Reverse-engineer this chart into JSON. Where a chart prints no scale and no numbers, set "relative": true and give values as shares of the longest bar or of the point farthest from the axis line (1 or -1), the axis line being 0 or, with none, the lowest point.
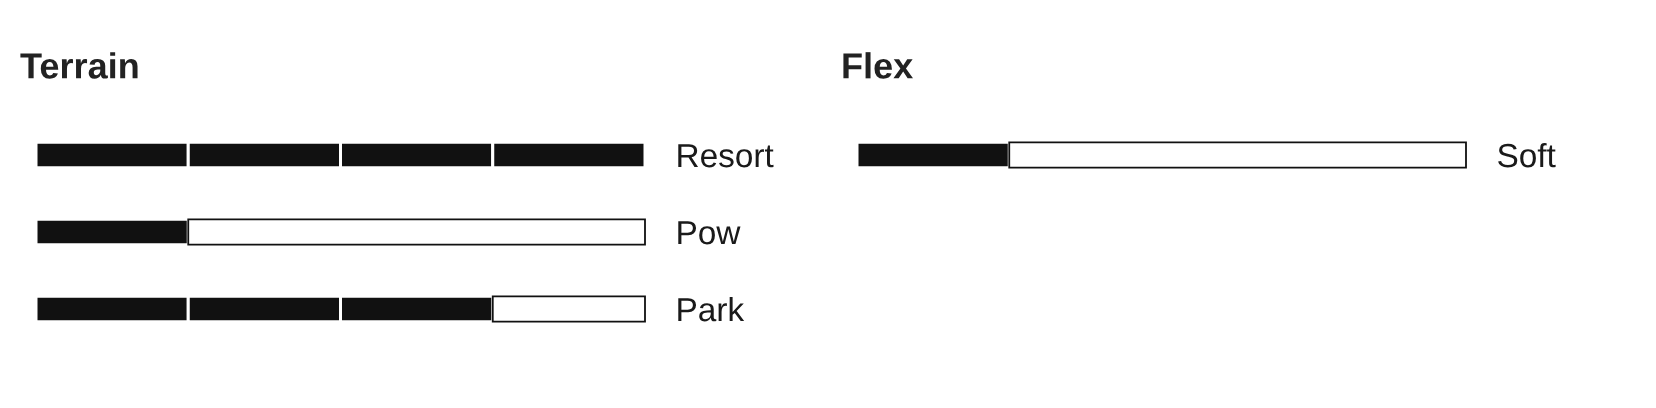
{
  "chart_data": [
    {
      "type": "bar",
      "title": "Terrain",
      "orientation": "horizontal",
      "stacked": true,
      "relative": true,
      "tick_labels": "y",
      "categories": [
        "Resort",
        "Pow",
        "Park"
      ],
      "series": [
        {
          "color": "#111111",
          "values": [
            0.25,
            0.25,
            0.25
          ]
        },
        {
          "color": "#111111",
          "values": [
            0.25,
            null,
            0.25
          ]
        },
        {
          "color": "#111111",
          "values": [
            0.25,
            null,
            0.25
          ]
        },
        {
          "color": "#111111",
          "values": [
            0.25,
            null,
            null
          ]
        },
        {
          "color": "#ffffff",
          "values": [
            null,
            0.75,
            0.25
          ]
        }
      ]
    },
    {
      "type": "bar",
      "title": "Flex",
      "orientation": "horizontal",
      "stacked": true,
      "relative": true,
      "tick_labels": "y",
      "categories": [
        "Soft"
      ],
      "series": [
        {
          "color": "#111111",
          "values": [
            0.25
          ]
        },
        {
          "color": "#ffffff",
          "values": [
            0.75
          ]
        }
      ]
    }
  ]
}
